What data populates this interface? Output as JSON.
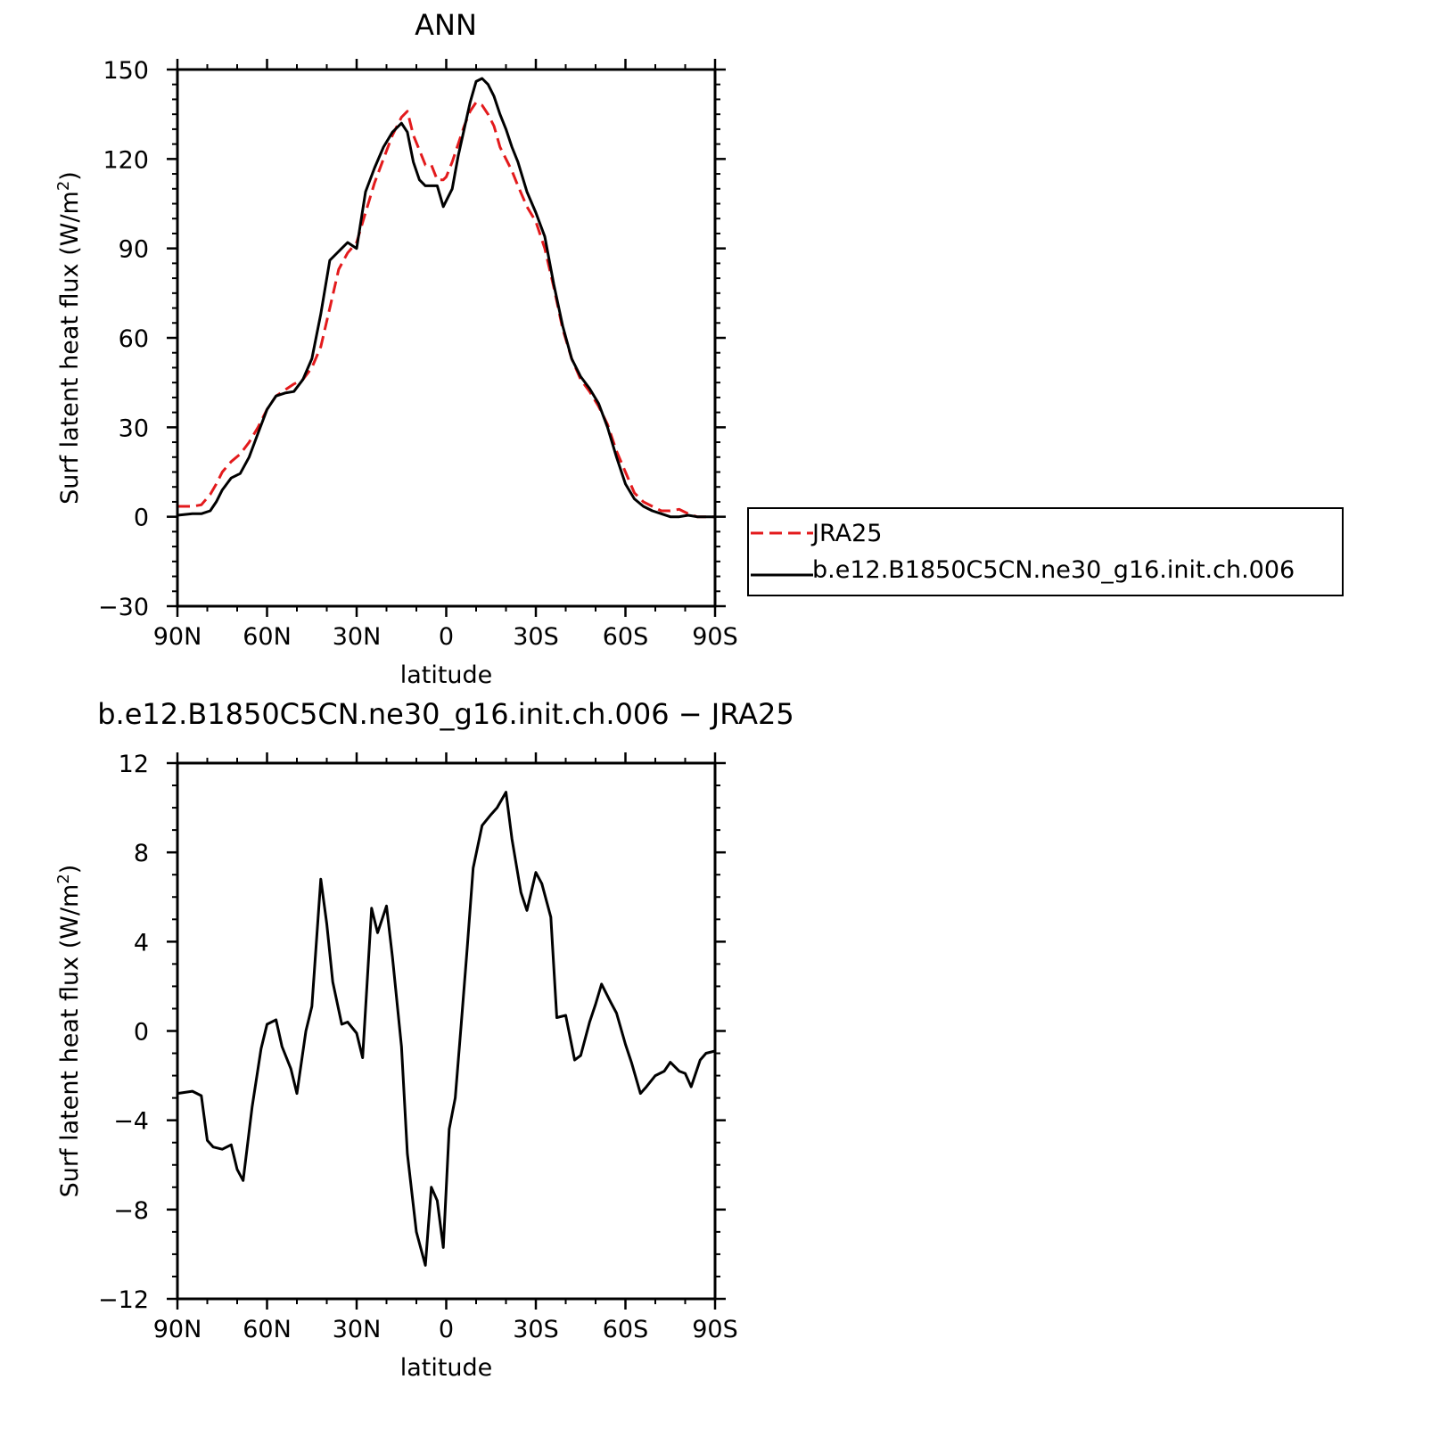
{
  "figure": {
    "season": "ANN",
    "diff_title": "b.e12.B1850C5CN.ne30_g16.init.ch.006 − JRA25"
  },
  "legend": {
    "obs_label": "JRA25",
    "model_label": "b.e12.B1850C5CN.ne30_g16.init.ch.006"
  },
  "chart_data": [
    {
      "type": "line",
      "title": "ANN",
      "xlabel": "latitude",
      "ylabel": "Surf latent heat flux (W/m²)",
      "ylabel_main": "Surf latent heat flux (W/m",
      "ylabel_sup": "2",
      "ylabel_end": ")",
      "xlim": [
        -90,
        90
      ],
      "ylim": [
        -30,
        150
      ],
      "xticks": [
        -90,
        -60,
        -30,
        0,
        30,
        60,
        90
      ],
      "xtick_labels": [
        "90N",
        "60N",
        "30N",
        "0",
        "30S",
        "60S",
        "90S"
      ],
      "yticks": [
        -30,
        0,
        30,
        60,
        90,
        120,
        150
      ],
      "ytick_labels": [
        "−30",
        "0",
        "30",
        "60",
        "90",
        "120",
        "150"
      ],
      "legend_position": "right",
      "series": [
        {
          "name": "JRA25",
          "color": "#e31a1c",
          "dash": "dashed",
          "x": [
            -90,
            -85,
            -82,
            -79,
            -77,
            -75,
            -72,
            -69,
            -66,
            -63,
            -60,
            -57,
            -54,
            -51,
            -48,
            -45,
            -42,
            -39,
            -36,
            -33,
            -30,
            -27,
            -24,
            -21,
            -18,
            -15,
            -13,
            -11,
            -9,
            -7,
            -5,
            -3,
            -1,
            0,
            2,
            4,
            6,
            8,
            10,
            12,
            14,
            16,
            18,
            20,
            22,
            24,
            27,
            30,
            33,
            36,
            39,
            42,
            45,
            48,
            51,
            54,
            57,
            60,
            63,
            66,
            69,
            72,
            75,
            78,
            81,
            84,
            87,
            90
          ],
          "y": [
            3.5,
            3.5,
            4,
            7.5,
            11,
            15,
            18.5,
            21,
            25,
            30,
            36,
            40.5,
            42.5,
            44.5,
            46,
            50,
            57,
            70,
            83,
            88.5,
            92,
            102,
            112,
            120,
            128,
            134,
            136,
            128,
            123,
            118,
            118,
            113,
            113,
            114,
            119,
            125,
            131,
            136,
            139,
            138,
            135,
            131,
            124,
            120,
            116,
            111,
            104,
            99,
            90,
            77,
            63,
            53,
            46,
            42,
            37,
            31,
            22,
            15,
            8,
            5,
            3.5,
            2,
            2,
            2.5,
            1,
            0,
            0,
            0
          ]
        },
        {
          "name": "b.e12.B1850C5CN.ne30_g16.init.ch.006",
          "color": "#000000",
          "dash": "solid",
          "x": [
            -90,
            -85,
            -82,
            -79,
            -77,
            -75,
            -72,
            -69,
            -66,
            -63,
            -60,
            -57,
            -54,
            -51,
            -48,
            -45,
            -42,
            -39,
            -36,
            -33,
            -30,
            -27,
            -24,
            -21,
            -18,
            -15,
            -13,
            -11,
            -9,
            -7,
            -5,
            -3,
            -1,
            0,
            2,
            4,
            6,
            8,
            10,
            12,
            14,
            16,
            18,
            20,
            22,
            24,
            27,
            30,
            33,
            36,
            39,
            42,
            45,
            48,
            51,
            54,
            57,
            60,
            63,
            66,
            69,
            72,
            75,
            78,
            81,
            84,
            87,
            90
          ],
          "y": [
            0.5,
            1,
            1,
            2,
            5,
            9,
            13,
            14.5,
            20,
            28,
            36,
            40.5,
            41.5,
            42,
            46,
            53,
            68,
            86,
            89,
            92,
            90,
            109,
            117,
            124,
            129,
            132,
            129,
            119,
            113,
            111,
            111,
            111,
            104,
            106,
            110,
            121,
            130,
            139,
            146,
            147,
            145,
            141,
            135,
            130,
            124,
            119,
            109,
            102,
            94,
            78,
            64,
            53,
            47,
            43,
            38,
            30,
            20,
            11,
            6,
            3.5,
            2,
            1,
            0,
            0,
            0.5,
            0,
            0,
            0
          ]
        }
      ]
    },
    {
      "type": "line",
      "title": "b.e12.B1850C5CN.ne30_g16.init.ch.006 − JRA25",
      "xlabel": "latitude",
      "ylabel": "Surf latent heat flux (W/m²)",
      "ylabel_main": "Surf latent heat flux (W/m",
      "ylabel_sup": "2",
      "ylabel_end": ")",
      "xlim": [
        -90,
        90
      ],
      "ylim": [
        -12,
        12
      ],
      "xticks": [
        -90,
        -60,
        -30,
        0,
        30,
        60,
        90
      ],
      "xtick_labels": [
        "90N",
        "60N",
        "30N",
        "0",
        "30S",
        "60S",
        "90S"
      ],
      "yticks": [
        -12,
        -8,
        -4,
        0,
        4,
        8,
        12
      ],
      "ytick_labels": [
        "−12",
        "−8",
        "−4",
        "0",
        "4",
        "8",
        "12"
      ],
      "series": [
        {
          "color": "#000000",
          "dash": "solid",
          "x": [
            -90,
            -85,
            -82,
            -80,
            -78,
            -75,
            -72,
            -70,
            -68,
            -65,
            -62,
            -60,
            -57,
            -55,
            -52,
            -50,
            -47,
            -45,
            -42,
            -40,
            -38,
            -35,
            -33,
            -30,
            -28,
            -25,
            -23,
            -20,
            -18,
            -15,
            -13,
            -10,
            -7,
            -5,
            -3,
            -1,
            1,
            3,
            5,
            7,
            9,
            12,
            15,
            17,
            20,
            22,
            25,
            27,
            30,
            32,
            35,
            37,
            40,
            43,
            45,
            48,
            50,
            52,
            55,
            57,
            60,
            62,
            65,
            67,
            70,
            73,
            75,
            78,
            80,
            82,
            85,
            87,
            90
          ],
          "y": [
            -2.8,
            -2.7,
            -2.9,
            -4.9,
            -5.2,
            -5.3,
            -5.1,
            -6.2,
            -6.7,
            -3.4,
            -0.8,
            0.3,
            0.5,
            -0.7,
            -1.7,
            -2.8,
            0,
            1.1,
            6.8,
            4.8,
            2.2,
            0.3,
            0.4,
            -0.1,
            -1.2,
            5.5,
            4.4,
            5.6,
            3.3,
            -0.7,
            -5.5,
            -9,
            -10.5,
            -7,
            -7.6,
            -9.7,
            -4.4,
            -3,
            0.3,
            3.7,
            7.3,
            9.2,
            9.7,
            10,
            10.7,
            8.6,
            6.2,
            5.4,
            7.1,
            6.6,
            5.1,
            0.6,
            0.7,
            -1.3,
            -1.1,
            0.4,
            1.2,
            2.1,
            1.3,
            0.8,
            -0.6,
            -1.4,
            -2.8,
            -2.5,
            -2,
            -1.8,
            -1.4,
            -1.8,
            -1.9,
            -2.5,
            -1.3,
            -1,
            -0.9
          ]
        }
      ]
    }
  ]
}
